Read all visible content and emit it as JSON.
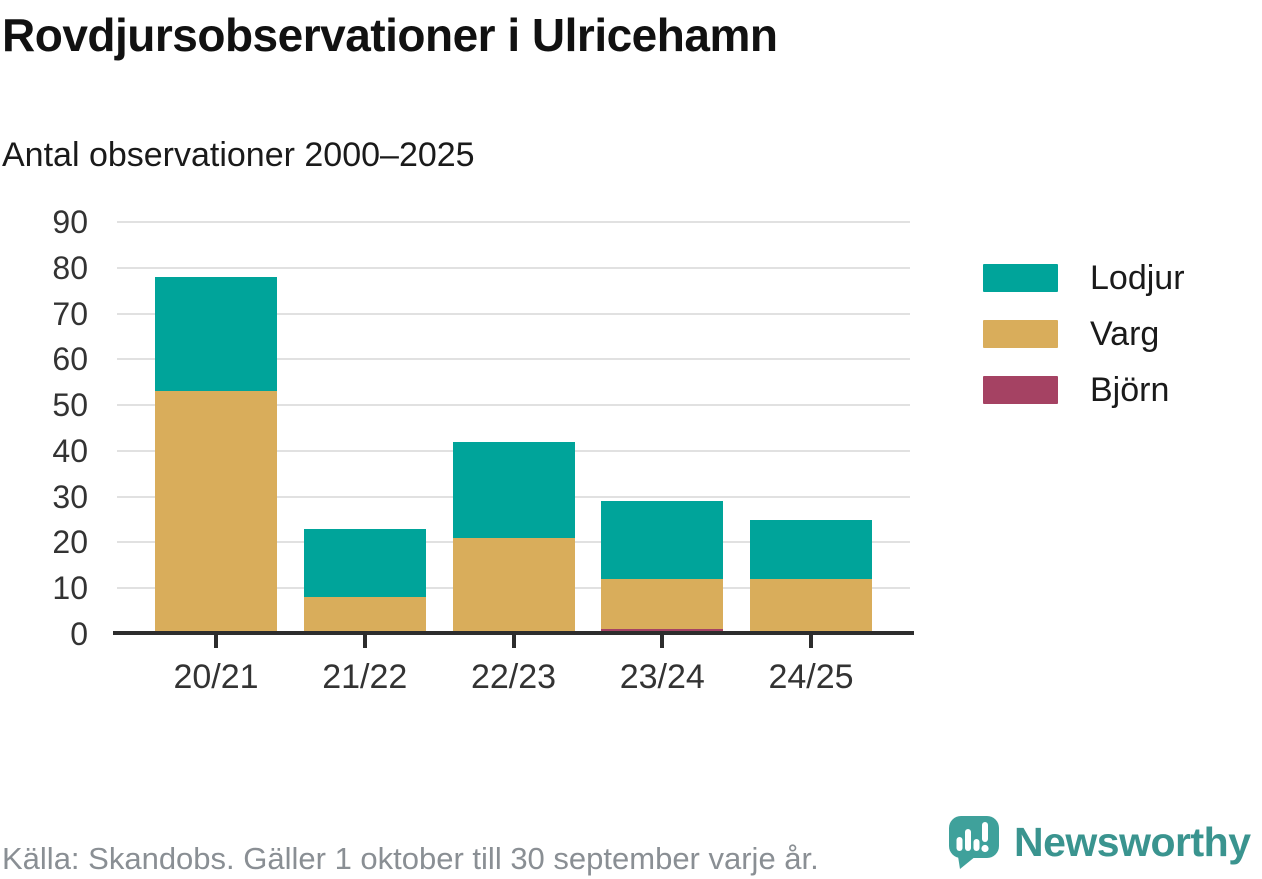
{
  "chart_data": {
    "type": "bar",
    "stacked": true,
    "title": "Rovdjursobservationer i Ulricehamn",
    "subtitle": "Antal observationer 2000–2025",
    "categories": [
      "20/21",
      "21/22",
      "22/23",
      "23/24",
      "24/25"
    ],
    "series": [
      {
        "name": "Lodjur",
        "color": "#00a49a",
        "values": [
          25,
          15,
          21,
          17,
          13
        ]
      },
      {
        "name": "Varg",
        "color": "#d9ad5b",
        "values": [
          53,
          8,
          21,
          11,
          12
        ]
      },
      {
        "name": "Björn",
        "color": "#a54263",
        "values": [
          0,
          0,
          0,
          1,
          0
        ]
      }
    ],
    "totals": [
      78,
      23,
      42,
      29,
      25
    ],
    "ylim": [
      0,
      90
    ],
    "ytick_step": 10,
    "yticks": [
      0,
      10,
      20,
      30,
      40,
      50,
      60,
      70,
      80,
      90
    ],
    "grid": true,
    "legend_position": "right",
    "stack_order_bottom_to_top": [
      "Björn",
      "Varg",
      "Lodjur"
    ]
  },
  "colors": {
    "grid_line": "#e1e1e1",
    "axis_line": "#2d2d2d",
    "axis_text": "#333333",
    "title_text": "#111111",
    "source_text": "#8a8f94",
    "logo_bubble": "#3fa19b",
    "brand_text": "#3a948f"
  },
  "footer": {
    "source": "Källa: Skandobs. Gäller 1 oktober till 30 september varje år.",
    "brand": "Newsworthy",
    "logo_icon": "speech-bubble-bar-chart-exclamation-icon"
  }
}
